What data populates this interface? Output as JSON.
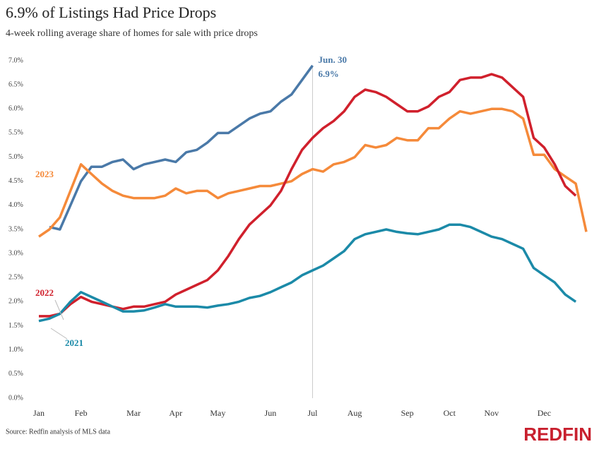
{
  "chart_data": {
    "type": "line",
    "title": "6.9% of Listings Had Price Drops",
    "subtitle": "4-week rolling average share of homes for sale with price drops",
    "source": "Source: Redfin analysis of MLS data",
    "logo": "REDFIN",
    "annotations": [
      "Jun. 30",
      "6.9%"
    ],
    "categories": [
      "Jan",
      null,
      null,
      null,
      "Feb",
      null,
      null,
      null,
      null,
      "Mar",
      null,
      null,
      null,
      "Apr",
      null,
      null,
      null,
      "May",
      null,
      null,
      null,
      null,
      "Jun",
      null,
      null,
      null,
      "Jul",
      null,
      null,
      null,
      "Aug",
      null,
      null,
      null,
      null,
      "Sep",
      null,
      null,
      null,
      "Oct",
      null,
      null,
      null,
      "Nov",
      null,
      null,
      null,
      null,
      "Dec",
      null,
      null,
      null,
      null
    ],
    "ylim": [
      0,
      7
    ],
    "yticks": [
      {
        "value": 0,
        "label": "0.0%"
      },
      {
        "value": 0.5,
        "label": "0.5%"
      },
      {
        "value": 1,
        "label": "1.0%"
      },
      {
        "value": 1.5,
        "label": "1.5%"
      },
      {
        "value": 2,
        "label": "2.0%"
      },
      {
        "value": 2.5,
        "label": "2.5%"
      },
      {
        "value": 3,
        "label": "3.0%"
      },
      {
        "value": 3.5,
        "label": "3.5%"
      },
      {
        "value": 4,
        "label": "4.0%"
      },
      {
        "value": 4.5,
        "label": "4.5%"
      },
      {
        "value": 5,
        "label": "5.0%"
      },
      {
        "value": 5.5,
        "label": "5.5%"
      },
      {
        "value": 6,
        "label": "6.0%"
      },
      {
        "value": 6.5,
        "label": "6.5%"
      },
      {
        "value": 7,
        "label": "7.0%"
      }
    ],
    "grid": false,
    "series": [
      {
        "color": "#4a79a8",
        "values": [
          null,
          3.55,
          3.5,
          4.0,
          4.5,
          4.8,
          4.8,
          4.9,
          4.95,
          4.75,
          4.85,
          4.9,
          4.95,
          4.9,
          5.1,
          5.15,
          5.3,
          5.5,
          5.5,
          5.65,
          5.8,
          5.9,
          5.95,
          6.15,
          6.3,
          6.6,
          6.9,
          null,
          null,
          null,
          null,
          null,
          null,
          null,
          null,
          null,
          null,
          null,
          null,
          null,
          null,
          null,
          null,
          null,
          null,
          null,
          null,
          null,
          null,
          null,
          null,
          null,
          null
        ]
      },
      {
        "name": "2023",
        "color": "#f58a3a",
        "values": [
          3.35,
          3.5,
          3.75,
          4.3,
          4.85,
          4.65,
          4.45,
          4.3,
          4.2,
          4.15,
          4.15,
          4.15,
          4.2,
          4.35,
          4.25,
          4.3,
          4.3,
          4.15,
          4.25,
          4.3,
          4.35,
          4.4,
          4.4,
          4.45,
          4.5,
          4.65,
          4.75,
          4.7,
          4.85,
          4.9,
          5.0,
          5.25,
          5.2,
          5.25,
          5.4,
          5.35,
          5.35,
          5.6,
          5.6,
          5.8,
          5.95,
          5.9,
          5.95,
          6.0,
          6.0,
          5.95,
          5.8,
          5.05,
          5.05,
          4.75,
          4.6,
          4.45,
          3.45
        ]
      },
      {
        "name": "2022",
        "color": "#d0202c",
        "values": [
          1.7,
          1.7,
          1.75,
          1.95,
          2.1,
          2.0,
          1.95,
          1.9,
          1.85,
          1.9,
          1.9,
          1.95,
          2.0,
          2.15,
          2.25,
          2.35,
          2.45,
          2.65,
          2.95,
          3.3,
          3.6,
          3.8,
          4.0,
          4.3,
          4.75,
          5.15,
          5.4,
          5.6,
          5.75,
          5.95,
          6.25,
          6.4,
          6.35,
          6.25,
          6.1,
          5.95,
          5.95,
          6.05,
          6.25,
          6.35,
          6.6,
          6.65,
          6.65,
          6.72,
          6.65,
          6.45,
          6.25,
          5.4,
          5.2,
          4.85,
          4.4,
          4.2,
          null
        ]
      },
      {
        "name": "2021",
        "color": "#1b8aa8",
        "values": [
          1.6,
          1.65,
          1.75,
          2.0,
          2.2,
          2.1,
          2.0,
          1.9,
          1.8,
          1.8,
          1.82,
          1.88,
          1.95,
          1.9,
          1.9,
          1.9,
          1.88,
          1.92,
          1.95,
          2.0,
          2.08,
          2.12,
          2.2,
          2.3,
          2.4,
          2.55,
          2.65,
          2.75,
          2.9,
          3.05,
          3.3,
          3.4,
          3.45,
          3.5,
          3.45,
          3.42,
          3.4,
          3.45,
          3.5,
          3.6,
          3.6,
          3.55,
          3.45,
          3.35,
          3.3,
          3.2,
          3.1,
          2.7,
          2.55,
          2.4,
          2.15,
          2.0,
          null
        ]
      }
    ]
  }
}
